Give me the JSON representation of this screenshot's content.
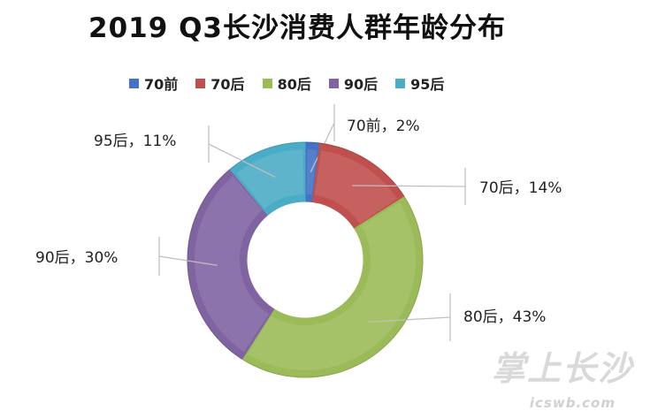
{
  "chart_data": {
    "type": "pie",
    "title": "2019 Q3长沙消费人群年龄分布",
    "legend_position": "top",
    "categories": [
      "70前",
      "70后",
      "80后",
      "90后",
      "95后"
    ],
    "values": [
      2,
      14,
      43,
      30,
      11
    ],
    "data_labels": [
      "70前，2%",
      "70后，14%",
      "80后，43%",
      "90后，30%",
      "95后，11%"
    ],
    "colors": [
      "#4472c4",
      "#c0504d",
      "#9bbb59",
      "#8064a2",
      "#4bacc6"
    ],
    "donut": true
  },
  "watermark": {
    "text": "掌上长沙",
    "url": "icswb.com"
  }
}
